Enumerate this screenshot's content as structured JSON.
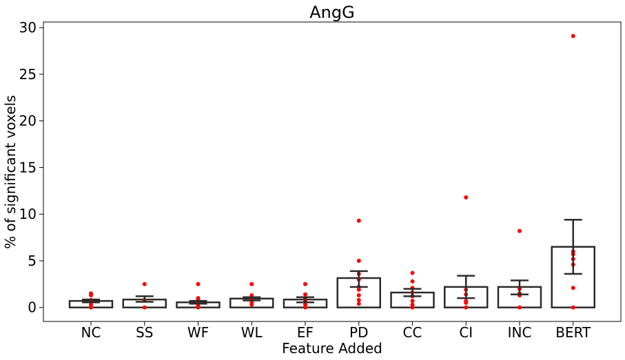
{
  "chart_data": {
    "type": "bar",
    "title": "AngG",
    "xlabel": "Feature Added",
    "ylabel": "% of significant voxels",
    "ylim": [
      -1.5,
      30.6
    ],
    "yticks": [
      0,
      5,
      10,
      15,
      20,
      25,
      30
    ],
    "categories": [
      "NC",
      "SS",
      "WF",
      "WL",
      "EF",
      "PD",
      "CC",
      "CI",
      "INC",
      "BERT"
    ],
    "values": [
      0.7,
      0.85,
      0.55,
      0.95,
      0.85,
      3.15,
      1.6,
      2.2,
      2.2,
      6.5
    ],
    "error_bars": [
      [
        0.55,
        0.85
      ],
      [
        0.6,
        1.2
      ],
      [
        0.4,
        0.7
      ],
      [
        0.75,
        1.1
      ],
      [
        0.55,
        1.1
      ],
      [
        2.2,
        3.9
      ],
      [
        1.2,
        2.0
      ],
      [
        1.0,
        3.4
      ],
      [
        1.4,
        2.9
      ],
      [
        3.6,
        9.4
      ]
    ],
    "points": [
      [
        0.0,
        0.3,
        0.6,
        0.8,
        1.3,
        1.5
      ],
      [
        0.0,
        0.8,
        2.5
      ],
      [
        0.0,
        0.2,
        0.5,
        0.8,
        1.0,
        2.5
      ],
      [
        0.3,
        0.5,
        0.8,
        1.0,
        1.3,
        2.5
      ],
      [
        0.0,
        0.3,
        0.6,
        1.0,
        1.4,
        2.5
      ],
      [
        0.4,
        0.8,
        1.3,
        1.9,
        2.2,
        3.0,
        3.6,
        5.0,
        9.3
      ],
      [
        0.0,
        0.3,
        0.7,
        1.2,
        1.6,
        2.1,
        2.8,
        3.7
      ],
      [
        0.0,
        0.5,
        0.7,
        1.4,
        1.9,
        11.8
      ],
      [
        0.0,
        1.3,
        1.5,
        2.0,
        8.2
      ],
      [
        0.0,
        2.1,
        4.6,
        5.2,
        5.7,
        6.0,
        29.1
      ]
    ],
    "colors": {
      "bar_edge": "#2b2b2b",
      "point": "#ff0000",
      "error": "#2b2b2b"
    },
    "grid": false,
    "legend": "none"
  }
}
